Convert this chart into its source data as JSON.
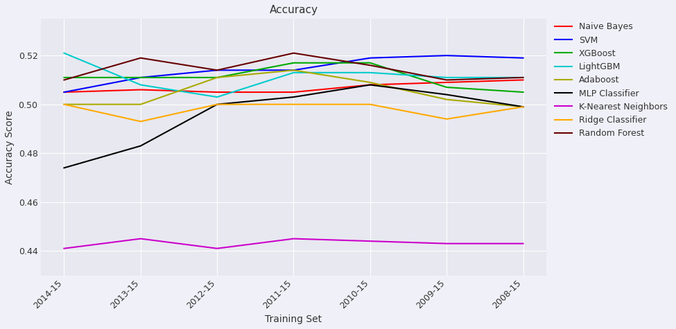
{
  "x_labels": [
    "2014-15",
    "2013-15",
    "2012-15",
    "2011-15",
    "2010-15",
    "2009-15",
    "2008-15"
  ],
  "title": "Accuracy",
  "xlabel": "Training Set",
  "ylabel": "Accuracy Score",
  "plot_bg_color": "#e8e8f0",
  "fig_bg_color": "#f0f0f8",
  "series": [
    {
      "name": "Naive Bayes",
      "color": "#ff0000",
      "values": [
        0.505,
        0.506,
        0.505,
        0.505,
        0.508,
        0.509,
        0.51
      ]
    },
    {
      "name": "SVM",
      "color": "#0000ff",
      "values": [
        0.505,
        0.511,
        0.514,
        0.514,
        0.519,
        0.52,
        0.519
      ]
    },
    {
      "name": "XGBoost",
      "color": "#00aa00",
      "values": [
        0.511,
        0.511,
        0.511,
        0.517,
        0.517,
        0.507,
        0.505
      ]
    },
    {
      "name": "LightGBM",
      "color": "#00cccc",
      "values": [
        0.521,
        0.508,
        0.503,
        0.513,
        0.513,
        0.511,
        0.511
      ]
    },
    {
      "name": "Adaboost",
      "color": "#aaaa00",
      "values": [
        0.5,
        0.5,
        0.511,
        0.514,
        0.509,
        0.502,
        0.499
      ]
    },
    {
      "name": "MLP Classifier",
      "color": "#000000",
      "values": [
        0.474,
        0.483,
        0.5,
        0.503,
        0.508,
        0.504,
        0.499
      ]
    },
    {
      "name": "K-Nearest Neighbors",
      "color": "#cc00cc",
      "values": [
        0.441,
        0.445,
        0.441,
        0.445,
        0.444,
        0.443,
        0.443
      ]
    },
    {
      "name": "Ridge Classifier",
      "color": "#ffaa00",
      "values": [
        0.5,
        0.493,
        0.5,
        0.5,
        0.5,
        0.494,
        0.499
      ]
    },
    {
      "name": "Random Forest",
      "color": "#660000",
      "values": [
        0.51,
        0.519,
        0.514,
        0.521,
        0.516,
        0.51,
        0.511
      ]
    }
  ],
  "ylim": [
    0.43,
    0.535
  ],
  "yticks": [
    0.44,
    0.46,
    0.48,
    0.5,
    0.52
  ]
}
